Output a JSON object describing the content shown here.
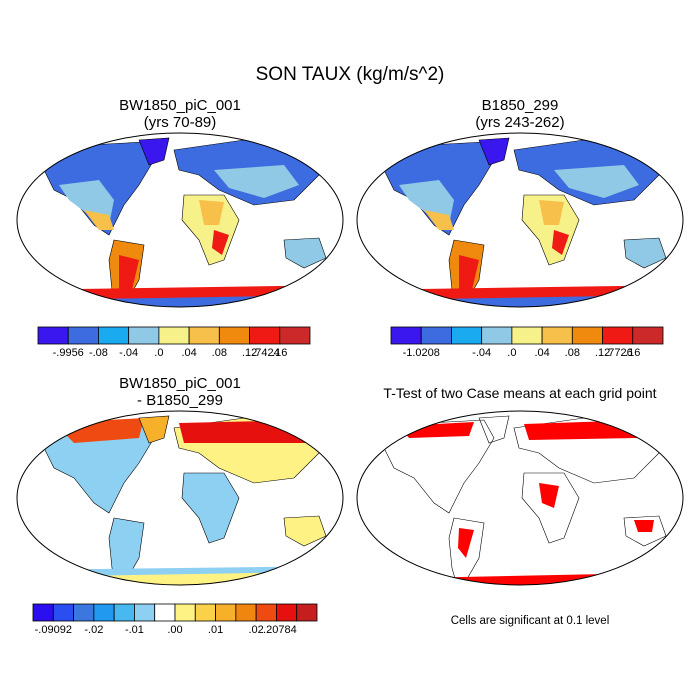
{
  "title": "SON TAUX (kg/m/s^2)",
  "panels": [
    {
      "title_line1": "BW1850_piC_001",
      "title_line2": "(yrs 70-89)",
      "colorbar": {
        "colors": [
          "#3a17ee",
          "#3d6be0",
          "#1aaaf0",
          "#8fc9e6",
          "#f7f18a",
          "#f7c04a",
          "#f08a0f",
          "#ef1a14",
          "#cc2a2a"
        ],
        "labels": [
          "-.9956",
          "-.08",
          "-.04",
          ".0",
          ".04",
          ".08",
          ".12",
          ".16",
          ".7424"
        ]
      }
    },
    {
      "title_line1": "B1850_299",
      "title_line2": "(yrs 243-262)",
      "colorbar": {
        "colors": [
          "#3a17ee",
          "#3d6be0",
          "#1aaaf0",
          "#8fc9e6",
          "#f7f18a",
          "#f7c04a",
          "#f08a0f",
          "#ef1a14",
          "#cc2a2a"
        ],
        "labels": [
          "-1.0208",
          "",
          "-.04",
          ".0",
          ".04",
          ".08",
          ".12",
          ".16",
          ".7726"
        ]
      }
    },
    {
      "title_line1": "BW1850_piC_001",
      "title_line2": "- B1850_299",
      "colorbar": {
        "colors": [
          "#2c0ff0",
          "#2a4ef0",
          "#3a78e0",
          "#2099ee",
          "#47b8f0",
          "#8ed0f2",
          "#ffffff",
          "#fff284",
          "#f9d24a",
          "#f7b02a",
          "#f0850f",
          "#ef4a12",
          "#e6100e",
          "#c41e1e"
        ],
        "labels": [
          "-.09092",
          "",
          "-.02",
          "",
          "-.01",
          "",
          ".00",
          "",
          ".01",
          "",
          ".02",
          "",
          "",
          ".20784"
        ]
      }
    },
    {
      "title": "T-Test of two Case means at each grid point",
      "significance_color": "#ff0000",
      "note": "Cells are significant at 0.1 level"
    }
  ]
}
